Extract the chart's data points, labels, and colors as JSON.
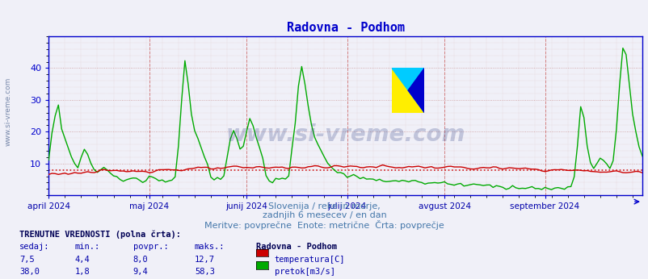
{
  "title": "Radovna - Podhom",
  "title_color": "#0000cc",
  "bg_color": "#f0f0f8",
  "plot_bg_color": "#f0f0f8",
  "grid_color_major": "#cc9999",
  "grid_color_minor": "#ddbbbb",
  "axis_color": "#0000cc",
  "subtitle_lines": [
    "Slovenija / reke in morje,",
    "zadnjih 6 mesecev / en dan",
    "Meritve: povprečne  Enote: metrične  Črta: povprečje"
  ],
  "subtitle_color": "#4477aa",
  "watermark_text": "www.si-vreme.com",
  "watermark_color": "#334488",
  "ylim": [
    0,
    50
  ],
  "yticks": [
    10,
    20,
    30,
    40
  ],
  "hline_value": 8.0,
  "hline_color": "#cc0000",
  "temp_color": "#cc0000",
  "flow_color": "#00aa00",
  "temp_linewidth": 1.0,
  "flow_linewidth": 1.0,
  "vline_color": "#cc6666",
  "month_labels": [
    "april 2024",
    "maj 2024",
    "junij 2024",
    "julij 2024",
    "avgust 2024",
    "september 2024"
  ],
  "month_tick_days": [
    0,
    31,
    61,
    92,
    122,
    153
  ],
  "n_days": 184,
  "month_label_color": "#0000aa",
  "info_label": "TRENUTNE VREDNOSTI (polna črta):",
  "col_headers": [
    "sedaj:",
    "min.:",
    "povpr.:",
    "maks.:"
  ],
  "station_name": "Radovna - Podhom",
  "row1": [
    "7,5",
    "4,4",
    "8,0",
    "12,7",
    "temperatura[C]",
    "#cc0000"
  ],
  "row2": [
    "38,0",
    "1,8",
    "9,4",
    "58,3",
    "pretok[m3/s]",
    "#00aa00"
  ],
  "figsize": [
    8.03,
    3.46
  ],
  "dpi": 100
}
